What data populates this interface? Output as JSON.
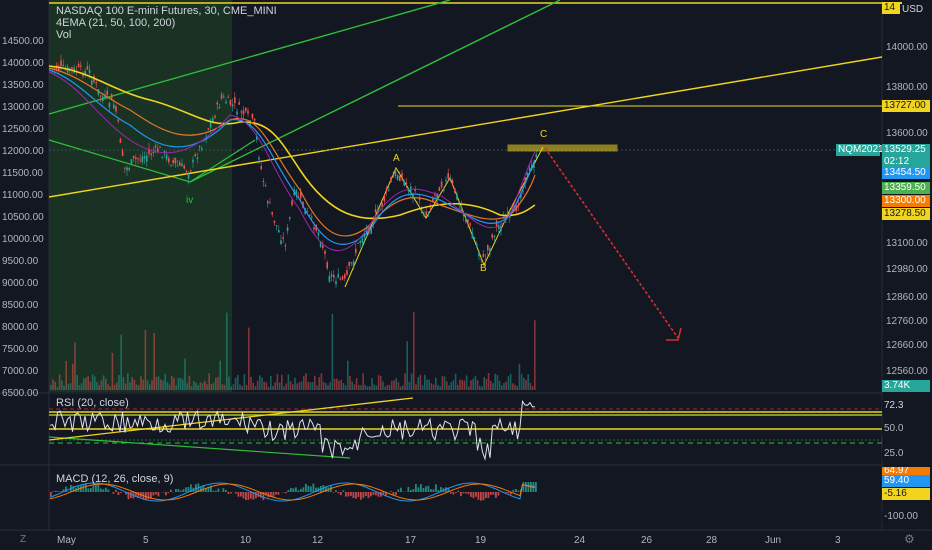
{
  "header": {
    "title": "NASDAQ 100 E-mini Futures, 30, CME_MINI",
    "ema_label": "4EMA (21, 50, 100, 200)",
    "vol_label": "Vol",
    "currency": "USD"
  },
  "left_axis_ticks": [
    "14500.00",
    "14000.00",
    "13500.00",
    "13000.00",
    "12500.00",
    "12000.00",
    "11500.00",
    "11000.00",
    "10500.00",
    "10000.00",
    "9500.00",
    "9000.00",
    "8500.00",
    "8000.00",
    "7500.00",
    "7000.00",
    "6500.00"
  ],
  "right_axis_ticks": [
    "14000.00",
    "13800.00",
    "13600.00",
    "13100.00",
    "12980.00",
    "12860.00",
    "12760.00",
    "12660.00",
    "12560.00"
  ],
  "price_tags": {
    "top": "14",
    "level_13727": "13727.00",
    "symbol": "NQM2021",
    "last": "13529.25",
    "countdown": "02:12",
    "tag_13454": "13454.50",
    "tag_13359": "13359.50",
    "tag_13300": "13300.00",
    "tag_13278": "13278.50",
    "volume": "3.74K"
  },
  "wave_labels": {
    "iv": "iv",
    "A": "A",
    "B": "B",
    "C": "C"
  },
  "rsi": {
    "label": "RSI (20, close)",
    "value": "72.3",
    "ticks": [
      "50.0",
      "25.0"
    ]
  },
  "macd": {
    "label": "MACD (12, 26, close, 9)",
    "value1": "64.97",
    "value2": "59.40",
    "value3": "-5.16",
    "ticks": [
      "-100.00"
    ]
  },
  "time_axis": [
    "May",
    "5",
    "10",
    "12",
    "17",
    "19",
    "24",
    "26",
    "28",
    "Jun",
    "3"
  ],
  "colors": {
    "background": "#131722",
    "yellow": "#f0d41d",
    "green": "#2fbf37",
    "red": "#d32f2f",
    "price_label": "#26a69a",
    "orange": "#f57c00"
  },
  "icons": {
    "corner_left": "Z",
    "settings": "gear-icon"
  }
}
